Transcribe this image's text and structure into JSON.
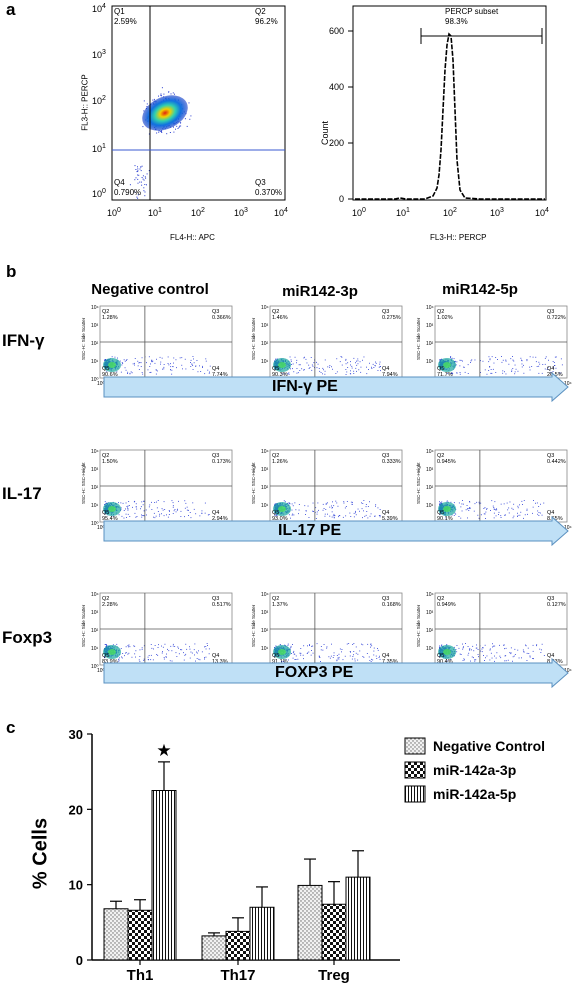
{
  "panels": {
    "a": "a",
    "b": "b",
    "c": "c"
  },
  "panel_a": {
    "dotplot": {
      "xlabel": "FL4-H:: APC",
      "ylabel": "FL3-H:: PERCP",
      "quadrants": [
        {
          "name": "Q1",
          "value": "2.59%"
        },
        {
          "name": "Q2",
          "value": "96.2%"
        },
        {
          "name": "Q3",
          "value": "0.370%"
        },
        {
          "name": "Q4",
          "value": "0.790%"
        }
      ]
    },
    "histogram": {
      "xlabel": "FL3-H:: PERCP",
      "ylabel": "Count",
      "gate_name": "PERCP subset",
      "gate_value": "98.3%",
      "yticks": [
        "0",
        "200",
        "400",
        "600"
      ]
    }
  },
  "panel_b": {
    "columns": [
      "Negative control",
      "miR142-3p",
      "miR142-5p"
    ],
    "rows": [
      {
        "label": "IFN-γ",
        "arrow": "IFN-γ PE",
        "ylabel": "SSC-H:: Side Scatter",
        "plots": [
          {
            "q2": "1.28%",
            "q3": "0.366%",
            "q5": "90.6%",
            "q4": "7.74%"
          },
          {
            "q2": "1.46%",
            "q3": "0.275%",
            "q5": "90.3%",
            "q4": "7.94%"
          },
          {
            "q2": "1.02%",
            "q3": "0.722%",
            "q5": "71.7%",
            "q4": "26.5%"
          }
        ]
      },
      {
        "label": "IL-17",
        "arrow": "IL-17 PE",
        "ylabel": "SSC-H:: SSC-Height",
        "plots": [
          {
            "q2": "1.50%",
            "q3": "0.173%",
            "q5": "95.4%",
            "q4": "2.94%"
          },
          {
            "q2": "1.26%",
            "q3": "0.333%",
            "q5": "93.0%",
            "q4": "5.39%"
          },
          {
            "q2": "0.945%",
            "q3": "0.442%",
            "q5": "90.1%",
            "q4": "8.65%"
          }
        ]
      },
      {
        "label": "Foxp3",
        "arrow": "FOXP3 PE",
        "ylabel": "SSC-H:: Side Scatter",
        "plots": [
          {
            "q2": "2.28%",
            "q3": "0.517%",
            "q5": "83.9%",
            "q4": "13.3%"
          },
          {
            "q2": "1.37%",
            "q3": "0.168%",
            "q5": "91.1%",
            "q4": "7.35%"
          },
          {
            "q2": "0.949%",
            "q3": "0.127%",
            "q5": "90.4%",
            "q4": "8.53%"
          }
        ]
      }
    ]
  },
  "chart_data": {
    "type": "bar",
    "categories": [
      "Th1",
      "Th17",
      "Treg"
    ],
    "ylabel": "% Cells",
    "ylim": [
      0,
      30
    ],
    "yticks": [
      0,
      10,
      20,
      30
    ],
    "series": [
      {
        "name": "Negative Control",
        "values": [
          6.8,
          3.2,
          9.9
        ],
        "errors": [
          1.0,
          0.4,
          3.5
        ],
        "pattern": "dots"
      },
      {
        "name": "miR-142a-3p",
        "values": [
          6.6,
          3.8,
          7.4
        ],
        "errors": [
          1.4,
          1.8,
          3.0
        ],
        "pattern": "checker"
      },
      {
        "name": "miR-142a-5p",
        "values": [
          22.5,
          7.0,
          11.0
        ],
        "errors": [
          3.8,
          2.7,
          3.5
        ],
        "pattern": "vlines"
      }
    ],
    "annotations": [
      {
        "category": "Th1",
        "series": "miR-142a-5p",
        "text": "★"
      }
    ],
    "legend": "top-right"
  }
}
